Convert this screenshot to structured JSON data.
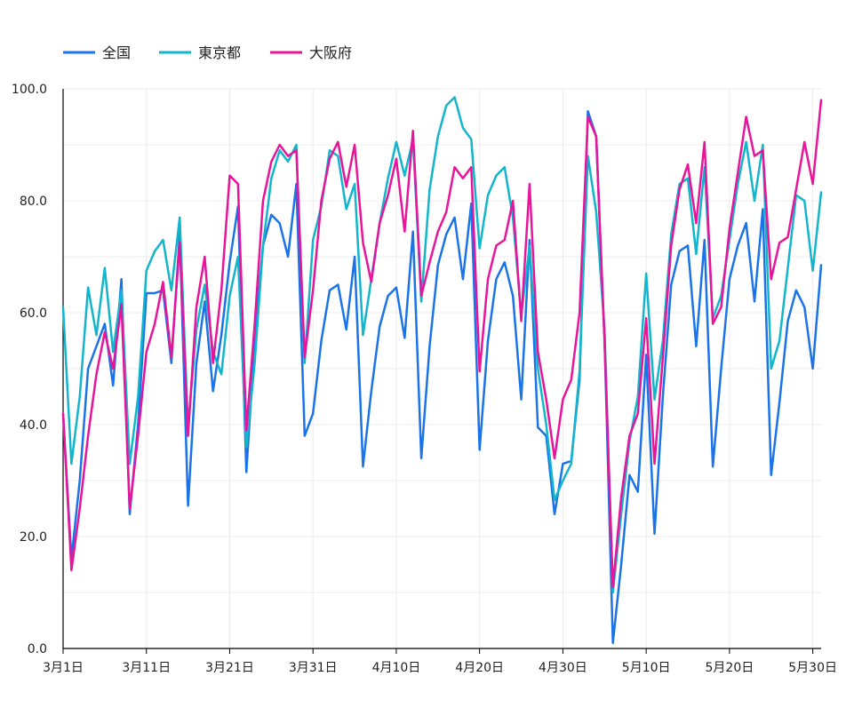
{
  "chart_data": {
    "type": "line",
    "title": "",
    "xlabel": "",
    "ylabel": "",
    "ylim": [
      0,
      100
    ],
    "yticks": [
      "0.0",
      "20.0",
      "40.0",
      "60.0",
      "80.0",
      "100.0"
    ],
    "grid": true,
    "legend_position": "top-left",
    "x_start": "2023-03-01",
    "x_ticks": [
      {
        "day": 0,
        "label": "3月1日"
      },
      {
        "day": 10,
        "label": "3月11日"
      },
      {
        "day": 20,
        "label": "3月21日"
      },
      {
        "day": 30,
        "label": "3月31日"
      },
      {
        "day": 40,
        "label": "4月10日"
      },
      {
        "day": 50,
        "label": "4月20日"
      },
      {
        "day": 60,
        "label": "4月30日"
      },
      {
        "day": 70,
        "label": "5月10日"
      },
      {
        "day": 80,
        "label": "5月20日"
      },
      {
        "day": 90,
        "label": "5月30日"
      }
    ],
    "series": [
      {
        "name": "全国",
        "color": "#1a73e8",
        "values": [
          42,
          16,
          30,
          50,
          54,
          58,
          47,
          66,
          24,
          40,
          63.5,
          63.5,
          64,
          51,
          74,
          25.5,
          51,
          62,
          46,
          56,
          69,
          79,
          31.5,
          55,
          72,
          77.5,
          76,
          70,
          83,
          38,
          42,
          55,
          64,
          65,
          57,
          70,
          32.5,
          46,
          57.5,
          63,
          64.5,
          55.5,
          74.5,
          34,
          54,
          68.5,
          74,
          77,
          66,
          79.5,
          35.5,
          55,
          66,
          69,
          63,
          44.5,
          73,
          39.5,
          38,
          24,
          33,
          33.5,
          48,
          96,
          91.5,
          55,
          1,
          15,
          31,
          28,
          52.5,
          20.5,
          45,
          65,
          71,
          72,
          54,
          73,
          32.5,
          50,
          66,
          72,
          76,
          62,
          78.5,
          31,
          44,
          58.5,
          64,
          61,
          50,
          68.5
        ]
      },
      {
        "name": "東京都",
        "color": "#12b5cb",
        "values": [
          61,
          33,
          45,
          64.5,
          56,
          68,
          53,
          64,
          33,
          45,
          67.5,
          71,
          73,
          64,
          77,
          39.5,
          57,
          65,
          53,
          49,
          63,
          70,
          36,
          51,
          72,
          84,
          89,
          87,
          90,
          51,
          73,
          79,
          89,
          88,
          78.5,
          83,
          56,
          66,
          76,
          84,
          90.5,
          84.5,
          91,
          62,
          82,
          91.5,
          97,
          98.5,
          93,
          91,
          71.5,
          81,
          84.5,
          86,
          77,
          59.5,
          72,
          50,
          40,
          26.5,
          30,
          33,
          49.5,
          88,
          78,
          57,
          10,
          24,
          37,
          45,
          67,
          44.5,
          55,
          74,
          83,
          84,
          70.5,
          86,
          59,
          63,
          73,
          83,
          90.5,
          80,
          90,
          50,
          55,
          68,
          81,
          80,
          67.5,
          81.5
        ]
      },
      {
        "name": "大阪府",
        "color": "#e8159b",
        "values": [
          42,
          14,
          25,
          38,
          49,
          56.5,
          50,
          61.5,
          25,
          38,
          53,
          58,
          65.5,
          52,
          72.5,
          38,
          61,
          70,
          51,
          64,
          84.5,
          83,
          39,
          58,
          80,
          87,
          90,
          88,
          89,
          52,
          64,
          80,
          87.5,
          90.5,
          82.5,
          90,
          72.5,
          65.5,
          76,
          81,
          87.5,
          74.5,
          92.5,
          63,
          69,
          74.5,
          78,
          86,
          84,
          86,
          49.5,
          66,
          72,
          73,
          80,
          58.5,
          83,
          53,
          44.5,
          34,
          44.5,
          48,
          60,
          95,
          91.5,
          55,
          11,
          27,
          38,
          42,
          59,
          33,
          52,
          72,
          82,
          86.5,
          76,
          90.5,
          58,
          61,
          75,
          85,
          95,
          88,
          89,
          66,
          72.5,
          73.5,
          82,
          90.5,
          83,
          98
        ]
      }
    ]
  }
}
